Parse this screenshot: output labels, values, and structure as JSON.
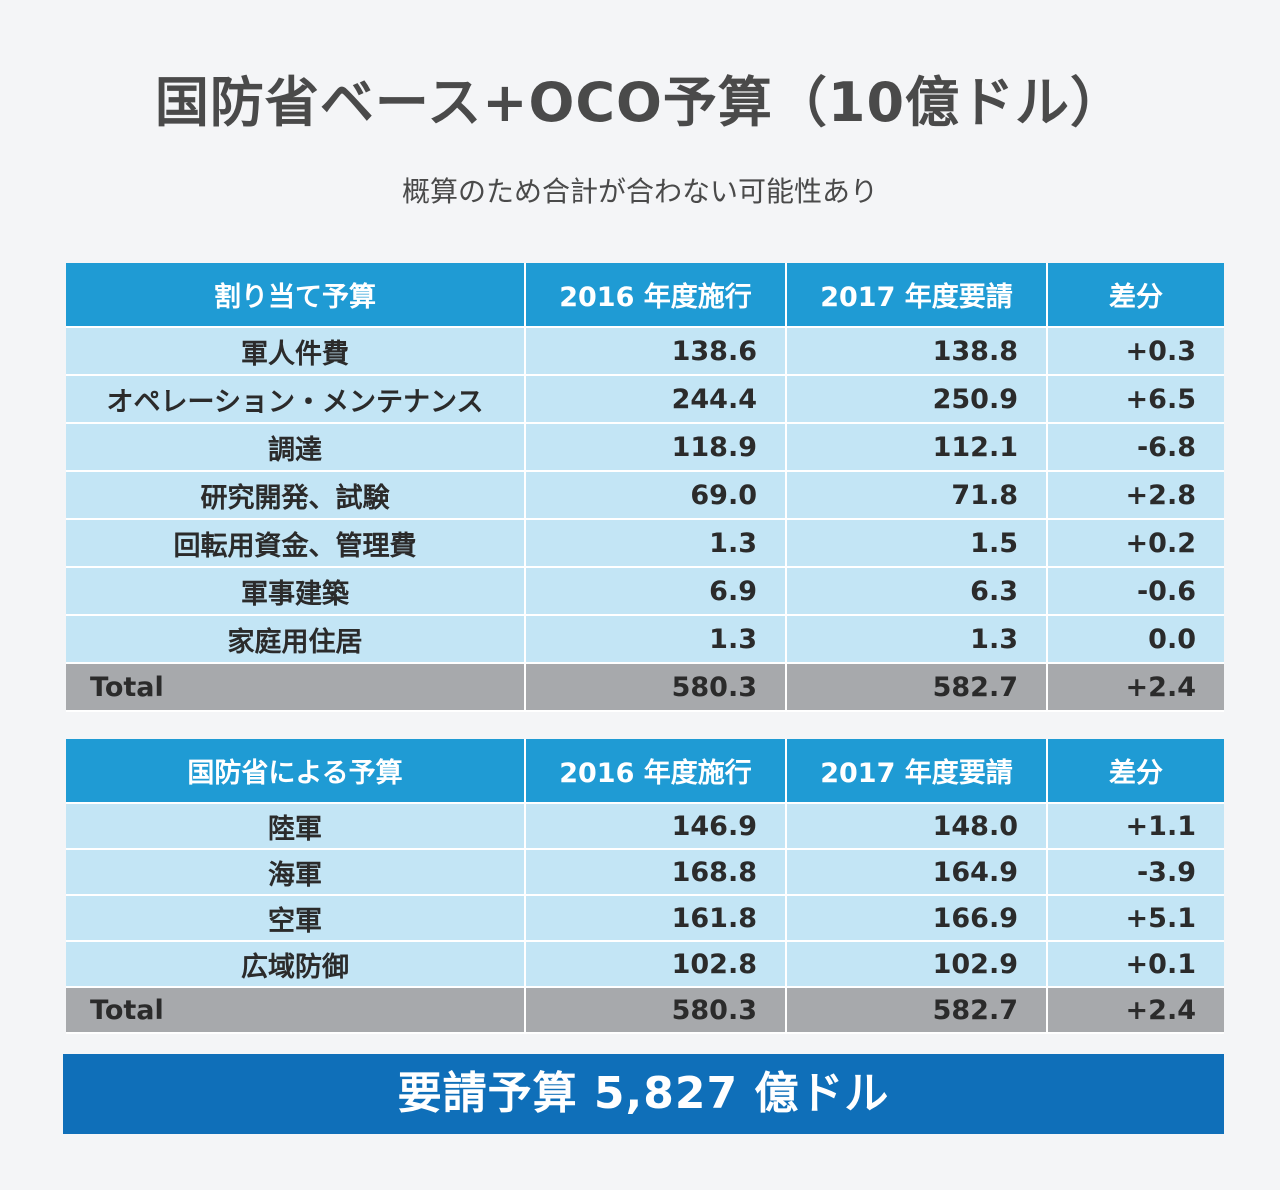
{
  "title": "国防省ベース+OCO予算（10億ドル）",
  "subtitle": "概算のため合計が合わない可能性あり",
  "table1": {
    "headers": [
      "割り当て予算",
      "2016 年度施行",
      "2017 年度要請",
      "差分"
    ],
    "rows": [
      [
        "軍人件費",
        "138.6",
        "138.8",
        "+0.3"
      ],
      [
        "オペレーション・メンテナンス",
        "244.4",
        "250.9",
        "+6.5"
      ],
      [
        "調達",
        "118.9",
        "112.1",
        "-6.8"
      ],
      [
        "研究開発、試験",
        "69.0",
        "71.8",
        "+2.8"
      ],
      [
        "回転用資金、管理費",
        "1.3",
        "1.5",
        "+0.2"
      ],
      [
        "軍事建築",
        "6.9",
        "6.3",
        "-0.6"
      ],
      [
        "家庭用住居",
        "1.3",
        "1.3",
        "0.0"
      ]
    ],
    "total": [
      "Total",
      "580.3",
      "582.7",
      "+2.4"
    ]
  },
  "table2": {
    "headers": [
      "国防省による予算",
      "2016 年度施行",
      "2017 年度要請",
      "差分"
    ],
    "rows": [
      [
        "陸軍",
        "146.9",
        "148.0",
        "+1.1"
      ],
      [
        "海軍",
        "168.8",
        "164.9",
        "-3.9"
      ],
      [
        "空軍",
        "161.8",
        "166.9",
        "+5.1"
      ],
      [
        "広域防御",
        "102.8",
        "102.9",
        "+0.1"
      ]
    ],
    "total": [
      "Total",
      "580.3",
      "582.7",
      "+2.4"
    ]
  },
  "banner": "要請予算 5,827 億ドル",
  "colors": {
    "header_blue": "#1f9bd4",
    "row_light_blue": "#c3e5f5",
    "total_gray": "#a7a9ac",
    "banner_blue": "#0f6fb9"
  }
}
